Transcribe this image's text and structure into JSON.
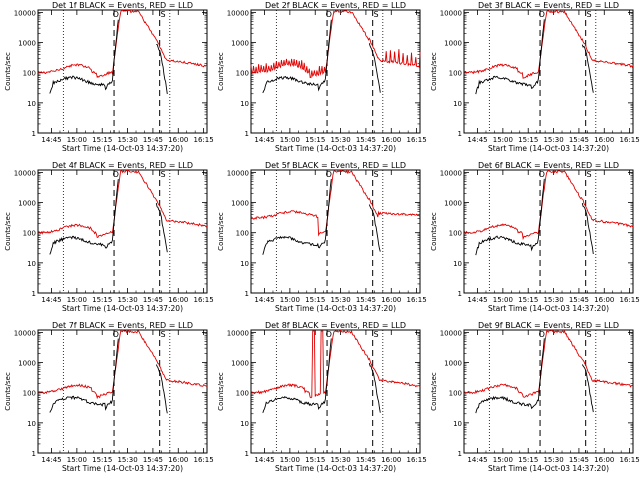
{
  "page": {
    "layout": "3x3 grid of detector count-rate plots"
  },
  "colors": {
    "events": "#000000",
    "lld": "#e00000",
    "axes": "#000000",
    "background": "#ffffff"
  },
  "common": {
    "ylabel": "Counts/sec",
    "xlabel": "Start Time (14-Oct-03 14:37:20)",
    "xticks": [
      "14:45",
      "15:00",
      "15:15",
      "15:30",
      "15:45",
      "16:00",
      "16:15"
    ],
    "xtick_minutes": [
      8,
      23,
      38,
      53,
      68,
      83,
      98
    ],
    "yticks": [
      "1",
      "10",
      "100",
      "1000",
      "10000"
    ],
    "xlim_minutes": [
      0,
      100
    ],
    "ylim": [
      1,
      12000
    ],
    "yscale": "log",
    "dotted_lines_minutes": [
      15,
      78
    ],
    "dashed_lines_minutes": [
      45,
      72
    ],
    "marker_labels": [
      "O",
      "S"
    ],
    "marker_minutes": [
      46,
      74
    ]
  },
  "chart_data": [
    {
      "type": "line",
      "title": "Det 1f BLACK = Events, RED = LLD",
      "variant": "normal"
    },
    {
      "type": "line",
      "title": "Det 2f BLACK = Events, RED = LLD",
      "variant": "noisy"
    },
    {
      "type": "line",
      "title": "Det 3f BLACK = Events, RED = LLD",
      "variant": "normal"
    },
    {
      "type": "line",
      "title": "Det 4f BLACK = Events, RED = LLD",
      "variant": "normal"
    },
    {
      "type": "line",
      "title": "Det 5f BLACK = Events, RED = LLD",
      "variant": "high_bg"
    },
    {
      "type": "line",
      "title": "Det 6f BLACK = Events, RED = LLD",
      "variant": "normal"
    },
    {
      "type": "line",
      "title": "Det 7f BLACK = Events, RED = LLD",
      "variant": "normal"
    },
    {
      "type": "line",
      "title": "Det 8f BLACK = Events, RED = LLD",
      "variant": "spikes"
    },
    {
      "type": "line",
      "title": "Det 9f BLACK = Events, RED = LLD",
      "variant": "normal"
    }
  ]
}
